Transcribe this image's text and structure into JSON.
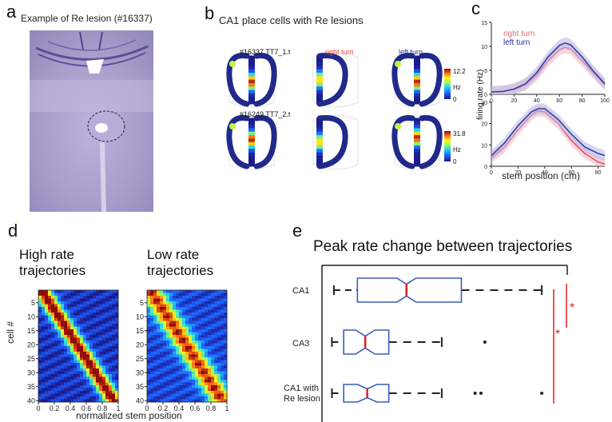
{
  "panel_a": {
    "label": "a",
    "title": "Example of Re lesion (#16337)"
  },
  "panel_b": {
    "label": "b",
    "title": "CA1 place cells with Re lesions",
    "rows": [
      {
        "cell_id": "#16337 TT7_1.t",
        "scale_max": "12.2",
        "scale_min": "0",
        "unit": "Hz"
      },
      {
        "cell_id": "#16249 TT7_2.t",
        "scale_max": "31.8",
        "scale_min": "0",
        "unit": "Hz"
      }
    ],
    "col_right": "right turn",
    "col_left": "left turn",
    "colors": {
      "right": "#e8463c",
      "left": "#2c2f9e",
      "track": "#1f2a8a"
    }
  },
  "panel_c": {
    "label": "c",
    "legend_right": "right turn",
    "legend_left": "left turn",
    "ylabel": "firing rate (Hz)",
    "xlabel": "stem position (cm)",
    "top_yticks": [
      "0",
      "5",
      "10",
      "15"
    ],
    "top_xticks": [
      "0",
      "20",
      "40",
      "60",
      "80",
      "100"
    ],
    "bottom_yticks": [
      "0",
      "10",
      "20",
      "30"
    ],
    "bottom_xticks": [
      "0",
      "20",
      "40",
      "60",
      "80"
    ]
  },
  "panel_d": {
    "label": "d",
    "left_title_1": "High rate",
    "left_title_2": "trajectories",
    "right_title_1": "Low rate",
    "right_title_2": "trajectories",
    "ylabel": "cell #",
    "xlabel": "normalized stem position",
    "yticks": [
      "5",
      "10",
      "15",
      "20",
      "25",
      "30",
      "35",
      "40"
    ],
    "xticks": [
      "0",
      "0.2",
      "0.4",
      "0.6",
      "0.8",
      "1"
    ]
  },
  "panel_e": {
    "label": "e",
    "title": "Peak rate change between trajectories",
    "rows": [
      {
        "label_1": "CA1",
        "label_2": ""
      },
      {
        "label_1": "CA3",
        "label_2": ""
      },
      {
        "label_1": "CA1 with",
        "label_2": "Re lesion"
      }
    ],
    "sig_1": "*",
    "sig_2": "*",
    "colors": {
      "box": "#3b5bb8",
      "median": "#e02020",
      "sig": "#e02020"
    }
  },
  "chart_data": [
    {
      "type": "line",
      "panel": "c-top",
      "xlabel": "stem position (cm)",
      "ylabel": "firing rate (Hz)",
      "xlim": [
        0,
        100
      ],
      "ylim": [
        0,
        15
      ],
      "x": [
        0,
        10,
        20,
        30,
        40,
        50,
        60,
        65,
        70,
        80,
        90,
        100
      ],
      "series": [
        {
          "name": "right turn",
          "values": [
            0.5,
            0.6,
            1.0,
            2.0,
            4.0,
            7.0,
            9.3,
            9.8,
            9.4,
            7.0,
            4.5,
            2.0
          ]
        },
        {
          "name": "left turn",
          "values": [
            0.5,
            0.6,
            1.1,
            2.2,
            4.5,
            7.8,
            10.2,
            10.7,
            10.3,
            7.8,
            4.8,
            2.2
          ]
        }
      ]
    },
    {
      "type": "line",
      "panel": "c-bottom",
      "xlim": [
        0,
        85
      ],
      "ylim": [
        0,
        30
      ],
      "x": [
        0,
        10,
        20,
        30,
        35,
        40,
        50,
        60,
        70,
        80,
        85
      ],
      "series": [
        {
          "name": "right turn",
          "values": [
            4,
            9,
            17,
            24,
            26,
            25.5,
            20,
            12,
            6,
            2,
            1
          ]
        },
        {
          "name": "left turn",
          "values": [
            5,
            11,
            19,
            25.5,
            27,
            27,
            22,
            15,
            9,
            6,
            5
          ]
        }
      ]
    },
    {
      "type": "box",
      "panel": "e",
      "categories": [
        "CA1",
        "CA3",
        "CA1 with Re lesion"
      ],
      "boxes": [
        {
          "whisker_low": 0.02,
          "q1": 0.14,
          "median": 0.39,
          "q3": 0.67,
          "whisker_high": 1.08,
          "outliers": []
        },
        {
          "whisker_low": 0.01,
          "q1": 0.07,
          "median": 0.18,
          "q3": 0.3,
          "whisker_high": 0.57,
          "outliers": [
            0.79
          ]
        },
        {
          "whisker_low": 0.01,
          "q1": 0.07,
          "median": 0.19,
          "q3": 0.3,
          "whisker_high": 0.57,
          "outliers": [
            0.74,
            0.77,
            1.08
          ]
        }
      ]
    }
  ]
}
